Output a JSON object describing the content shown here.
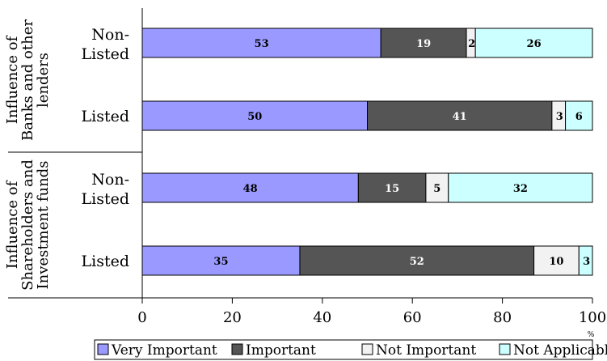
{
  "chart_data": {
    "type": "bar",
    "orientation": "horizontal",
    "stacked": true,
    "xlim": [
      0,
      100
    ],
    "xticks": [
      0,
      20,
      40,
      60,
      80,
      100
    ],
    "x_unit": "%",
    "grid": false,
    "legend_position": "bottom",
    "groups": [
      {
        "label_lines": [
          "Influence of",
          "Banks and other",
          "lenders"
        ],
        "categories": [
          "Non-Listed",
          "Listed"
        ]
      },
      {
        "label_lines": [
          "Influence of",
          "Shareholders and",
          "Investment funds"
        ],
        "categories": [
          "Non-Listed",
          "Listed"
        ]
      }
    ],
    "categories": [
      "Non-Listed",
      "Listed",
      "Non-Listed",
      "Listed"
    ],
    "series": [
      {
        "name": "Very Important",
        "color": "#9999ff",
        "values": [
          53,
          50,
          48,
          35
        ]
      },
      {
        "name": "Important",
        "color": "#555555",
        "values": [
          19,
          41,
          15,
          52
        ]
      },
      {
        "name": "Not Important",
        "color": "#f2f2f2",
        "values": [
          2,
          3,
          5,
          10
        ]
      },
      {
        "name": "Not Applicable",
        "color": "#ccffff",
        "values": [
          26,
          6,
          32,
          3
        ]
      }
    ]
  }
}
